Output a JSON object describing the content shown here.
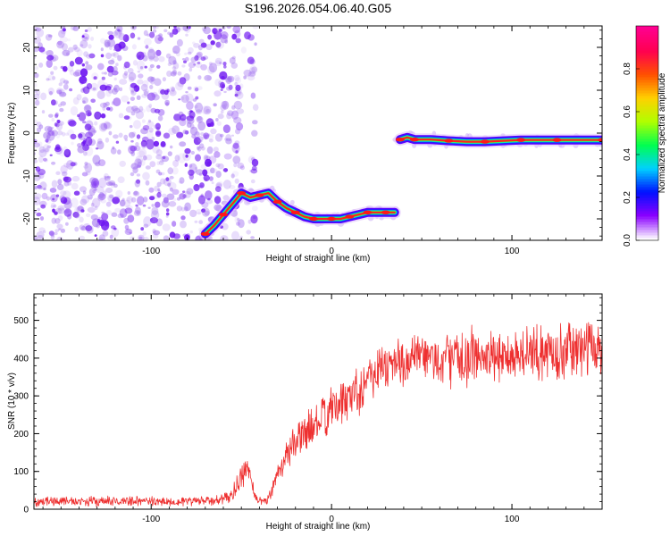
{
  "title": "S196.2026.054.06.40.G05",
  "colors": {
    "snr_line": "#ee3030",
    "frame": "#000000",
    "spectrogram_noise": "#7a1ef0",
    "spectrogram_ridge": "#ff2a2a"
  },
  "chart_data": [
    {
      "type": "heatmap",
      "name": "spectrogram",
      "xlabel": "Height of straight line (km)",
      "ylabel": "Frequency (Hz)",
      "xlim": [
        -165,
        150
      ],
      "ylim": [
        -25,
        25
      ],
      "xticks": [
        -100,
        0,
        100
      ],
      "xtick_labels": [
        "-100",
        "0",
        "100"
      ],
      "yticks": [
        -20,
        -10,
        0,
        10,
        20
      ],
      "ytick_labels": [
        "-20",
        "-10",
        "0",
        "10",
        "20"
      ],
      "colorbar": {
        "label": "Normalized spectral amplitude",
        "range": [
          0,
          1
        ],
        "ticks": [
          0,
          0.2,
          0.4,
          0.6,
          0.8
        ],
        "tick_labels": [
          "0.0",
          "0.2",
          "0.4",
          "0.6",
          "0.8"
        ],
        "colormap": [
          "#ffffff",
          "#8a00ff",
          "#0010ff",
          "#00d0ff",
          "#00ff50",
          "#b0ff00",
          "#ffd000",
          "#ff5000",
          "#ff0050",
          "#ff0090"
        ]
      },
      "noise_region": {
        "x_range": [
          -165,
          -42
        ],
        "note": "scattered low amplitude (~0.1-0.3)"
      },
      "ridges": [
        {
          "name": "lower-ridge",
          "points": [
            [
              -70,
              -23.5
            ],
            [
              -65,
              -21.5
            ],
            [
              -60,
              -19
            ],
            [
              -55,
              -16.5
            ],
            [
              -50,
              -14
            ],
            [
              -45,
              -15
            ],
            [
              -40,
              -14.5
            ],
            [
              -35,
              -14
            ],
            [
              -30,
              -16
            ],
            [
              -25,
              -17.5
            ],
            [
              -20,
              -18.5
            ],
            [
              -15,
              -19.5
            ],
            [
              -10,
              -20
            ],
            [
              -5,
              -20
            ],
            [
              0,
              -20
            ],
            [
              5,
              -20
            ],
            [
              10,
              -19.5
            ],
            [
              15,
              -19
            ],
            [
              20,
              -18.5
            ],
            [
              25,
              -18.5
            ],
            [
              30,
              -18.5
            ],
            [
              35,
              -18.5
            ]
          ]
        },
        {
          "name": "upper-ridge",
          "points": [
            [
              38,
              -1.5
            ],
            [
              42,
              -1
            ],
            [
              46,
              -1.5
            ],
            [
              55,
              -1.5
            ],
            [
              65,
              -1.8
            ],
            [
              75,
              -2
            ],
            [
              85,
              -2
            ],
            [
              95,
              -1.8
            ],
            [
              105,
              -1.6
            ],
            [
              115,
              -1.6
            ],
            [
              125,
              -1.6
            ],
            [
              135,
              -1.6
            ],
            [
              150,
              -1.6
            ]
          ]
        }
      ]
    },
    {
      "type": "line",
      "name": "snr",
      "xlabel": "Height of straight line (km)",
      "ylabel": "SNR (10 * v/v)",
      "xlim": [
        -165,
        150
      ],
      "ylim": [
        0,
        570
      ],
      "xticks": [
        -100,
        0,
        100
      ],
      "xtick_labels": [
        "-100",
        "0",
        "100"
      ],
      "yticks": [
        0,
        100,
        200,
        300,
        400,
        500
      ],
      "ytick_labels": [
        "0",
        "100",
        "200",
        "300",
        "400",
        "500"
      ],
      "series": [
        {
          "name": "SNR",
          "x": [
            -165,
            -150,
            -130,
            -110,
            -90,
            -70,
            -60,
            -55,
            -50,
            -47,
            -45,
            -42,
            -38,
            -35,
            -30,
            -25,
            -20,
            -15,
            -10,
            -5,
            0,
            5,
            10,
            15,
            20,
            25,
            30,
            40,
            50,
            60,
            70,
            80,
            90,
            100,
            110,
            120,
            130,
            140,
            150
          ],
          "values": [
            20,
            22,
            20,
            22,
            20,
            22,
            25,
            40,
            80,
            110,
            90,
            30,
            20,
            25,
            100,
            140,
            180,
            200,
            220,
            240,
            260,
            280,
            300,
            320,
            350,
            370,
            380,
            390,
            400,
            395,
            400,
            405,
            400,
            410,
            410,
            415,
            420,
            425,
            430
          ],
          "noise_amplitude": [
            15,
            15,
            15,
            15,
            15,
            15,
            18,
            25,
            35,
            45,
            40,
            15,
            12,
            20,
            35,
            45,
            55,
            60,
            65,
            70,
            70,
            70,
            75,
            80,
            80,
            80,
            80,
            80,
            80,
            80,
            85,
            85,
            85,
            85,
            85,
            85,
            85,
            85,
            85
          ]
        }
      ]
    }
  ]
}
